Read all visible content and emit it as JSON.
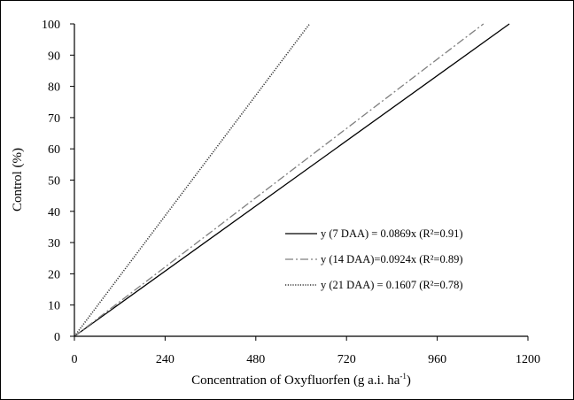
{
  "chart_data": {
    "type": "line",
    "xlabel": "Concentration of Oxyfluorfen (g a.i. ha",
    "xlabel_sup": "-1",
    "xlabel_close": ")",
    "ylabel": "Control (%)",
    "xlim": [
      0,
      1200
    ],
    "ylim": [
      0,
      100
    ],
    "xticks": [
      0,
      240,
      480,
      720,
      960,
      1200
    ],
    "yticks": [
      0,
      10,
      20,
      30,
      40,
      50,
      60,
      70,
      80,
      90,
      100
    ],
    "grid": false,
    "legend_position": "lower-right",
    "series": [
      {
        "name": "y (7 DAA) = 0.0869x (R²=0.91)",
        "slope": 0.0869,
        "style": "solid",
        "color": "#000000",
        "x": [
          0,
          1150.7
        ],
        "y": [
          0,
          100
        ]
      },
      {
        "name": "y (14 DAA)=0.0924x (R²=0.89)",
        "slope": 0.0924,
        "style": "dashdot",
        "color": "#7f7f7f",
        "x": [
          0,
          1082.3
        ],
        "y": [
          0,
          100
        ]
      },
      {
        "name": "y (21 DAA) = 0.1607 (R²=0.78)",
        "slope": 0.1607,
        "style": "dotted",
        "color": "#333333",
        "x": [
          0,
          622.3
        ],
        "y": [
          0,
          100
        ]
      }
    ]
  }
}
